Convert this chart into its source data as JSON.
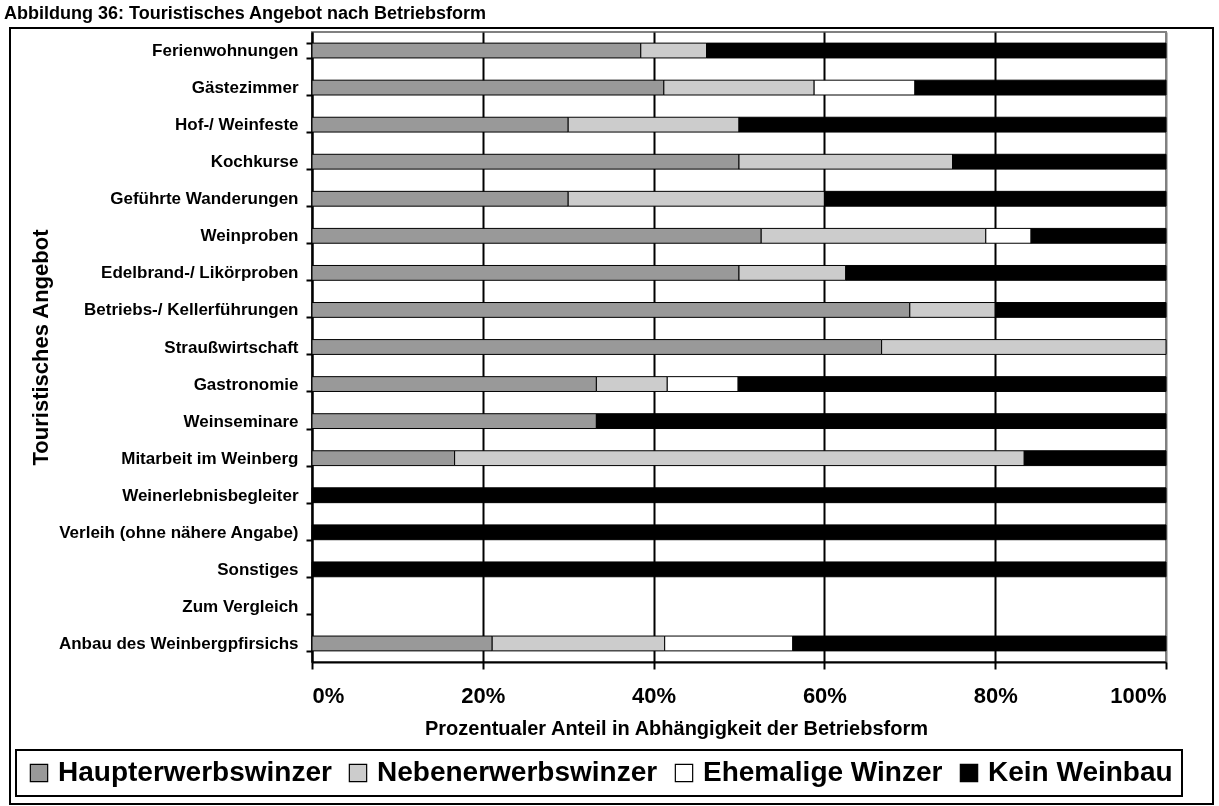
{
  "chart_data": {
    "type": "bar",
    "orientation": "horizontal",
    "stacked": true,
    "title": "Abbildung 36: Touristisches Angebot nach Betriebsform",
    "xlabel": "Prozentualer Anteil in Abhängigkeit der Betriebsform",
    "ylabel": "Touristisches Angebot",
    "categories": [
      "Ferienwohnungen",
      "Gästezimmer",
      "Hof-/ Weinfeste",
      "Kochkurse",
      "Geführte Wanderungen",
      "Weinproben",
      "Edelbrand-/ Likörproben",
      "Betriebs-/ Kellerführungen",
      "Straußwirtschaft",
      "Gastronomie",
      "Weinseminare",
      "Mitarbeit im Weinberg",
      "Weinerlebnisbegleiter",
      "Verleih (ohne nähere Angabe)",
      "Sonstiges",
      "Zum Vergleich",
      "Anbau des Weinbergpfirsichs"
    ],
    "series": [
      {
        "name": "Haupterwerbswinzer",
        "color": "#999999",
        "values": [
          38.5,
          41.2,
          30,
          50,
          30,
          52.6,
          50,
          70,
          66.7,
          33.3,
          33.3,
          16.7,
          0,
          0,
          0,
          null,
          21.1
        ]
      },
      {
        "name": "Nebenerwerbswinzer",
        "color": "#cccccc",
        "values": [
          7.7,
          17.6,
          20,
          25,
          30,
          26.3,
          12.5,
          10,
          33.3,
          8.3,
          0,
          66.7,
          0,
          0,
          0,
          null,
          20.2
        ]
      },
      {
        "name": "Ehemalige Winzer",
        "color": "#ffffff",
        "values": [
          0,
          11.8,
          0,
          0,
          0,
          5.3,
          0,
          0,
          0,
          8.3,
          0,
          0,
          0,
          0,
          0,
          null,
          15.0
        ]
      },
      {
        "name": "Kein Weinbau",
        "color": "#000000",
        "values": [
          53.8,
          29.4,
          50,
          25,
          40,
          15.8,
          37.5,
          20,
          0,
          50.1,
          66.7,
          16.6,
          100,
          100,
          100,
          null,
          43.7
        ]
      }
    ],
    "xlim": [
      0,
      100
    ],
    "xticks": [
      {
        "value": 0,
        "label": "0%"
      },
      {
        "value": 20,
        "label": "20%"
      },
      {
        "value": 40,
        "label": "40%"
      },
      {
        "value": 60,
        "label": "60%"
      },
      {
        "value": 80,
        "label": "80%"
      },
      {
        "value": 100,
        "label": "100%"
      }
    ],
    "grid": "x",
    "legend": "bottom"
  }
}
